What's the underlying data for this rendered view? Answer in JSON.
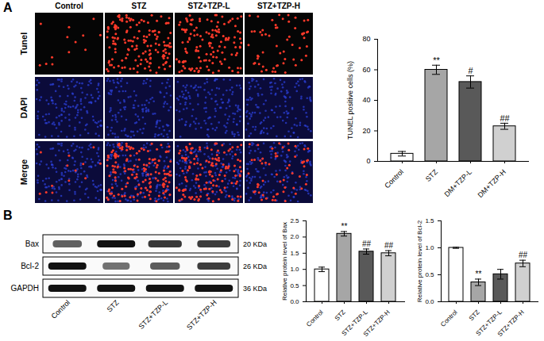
{
  "panel_labels": [
    "A",
    "B"
  ],
  "image_grid": {
    "columns": [
      "Control",
      "STZ",
      "STZ+TZP-L",
      "STZ+TZP-H"
    ],
    "rows": [
      "Tunel",
      "DAPI",
      "Merge"
    ]
  },
  "western_blot": {
    "lanes": [
      "Control",
      "STZ",
      "STZ+TZP-L",
      "STZ+TZP-H"
    ],
    "rows": [
      {
        "label": "Bax",
        "mw": "20 KDa"
      },
      {
        "label": "Bcl-2",
        "mw": "26 KDa"
      },
      {
        "label": "GAPDH",
        "mw": "36 KDa"
      }
    ]
  },
  "chart_data": [
    {
      "type": "bar",
      "y_label": "TUNEL positive cells (%)",
      "categories": [
        "Control",
        "STZ",
        "DM+TZP-L",
        "DM+TZP-H"
      ],
      "values": [
        5,
        60,
        52,
        23
      ],
      "errors": [
        1.5,
        3,
        4,
        2
      ],
      "annotations": [
        null,
        "**",
        "#",
        "##"
      ],
      "colors": [
        "#ffffff",
        "#a6a6a6",
        "#595959",
        "#d0d0d0"
      ],
      "ylim": [
        0,
        80
      ],
      "yticks": [
        0,
        20,
        40,
        60,
        80
      ]
    },
    {
      "type": "bar",
      "y_label": "Relative protein level of Bax",
      "categories": [
        "Control",
        "STZ",
        "STZ+TZP-L",
        "STZ+TZP-H"
      ],
      "values": [
        1.0,
        2.1,
        1.55,
        1.5
      ],
      "errors": [
        0.07,
        0.07,
        0.08,
        0.08
      ],
      "annotations": [
        null,
        "**",
        "##",
        "##"
      ],
      "colors": [
        "#ffffff",
        "#a6a6a6",
        "#595959",
        "#d0d0d0"
      ],
      "ylim": [
        0,
        2.5
      ],
      "yticks": [
        {
          "value": 0,
          "label": "0.0"
        },
        0.5,
        {
          "value": 1,
          "label": "1.0"
        },
        1.5,
        {
          "value": 2,
          "label": "2.0"
        },
        2.5
      ]
    },
    {
      "type": "bar",
      "y_label": "Relative protein level of Bcl-2",
      "categories": [
        "Control",
        "STZ",
        "STZ+TZP-L",
        "STZ+TZP-H"
      ],
      "values": [
        1.0,
        0.36,
        0.51,
        0.71
      ],
      "errors": [
        0.01,
        0.06,
        0.09,
        0.06
      ],
      "annotations": [
        null,
        "**",
        null,
        "##"
      ],
      "colors": [
        "#ffffff",
        "#a6a6a6",
        "#595959",
        "#d0d0d0"
      ],
      "ylim": [
        0,
        1.5
      ],
      "yticks": [
        {
          "value": 0,
          "label": "0.0"
        },
        0.5,
        {
          "value": 1,
          "label": "1.0"
        },
        1.5
      ]
    }
  ]
}
